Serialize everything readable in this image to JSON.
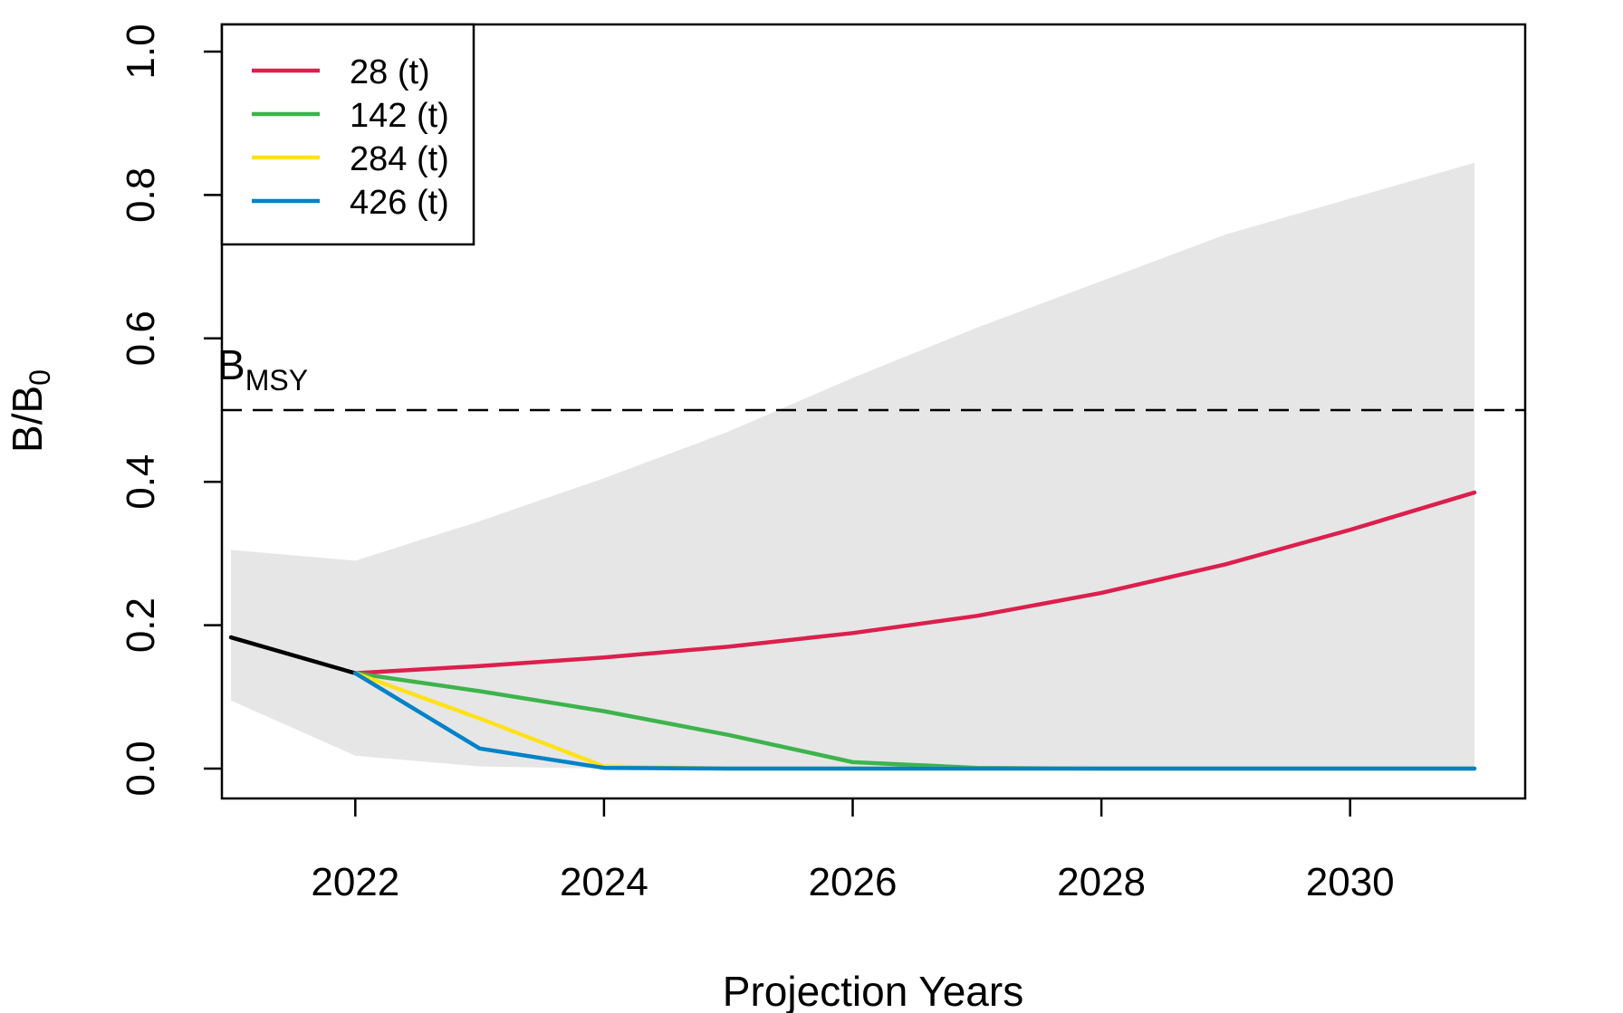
{
  "chart_data": {
    "type": "line",
    "xlabel": "Projection Years",
    "ylabel_main": "B/B",
    "ylabel_sub": "0",
    "xlim": [
      2021,
      2031
    ],
    "ylim": [
      0,
      1
    ],
    "x_ticks": [
      2022,
      2024,
      2026,
      2028,
      2030
    ],
    "y_ticks": [
      0.0,
      0.2,
      0.4,
      0.6,
      0.8,
      1.0
    ],
    "y_tick_labels": [
      "0.0",
      "0.2",
      "0.4",
      "0.6",
      "0.8",
      "1.0"
    ],
    "reference_line": {
      "y": 0.5,
      "label_main": "B",
      "label_sub": "MSY",
      "style": "dashed"
    },
    "band": {
      "x": [
        2021,
        2022,
        2023,
        2024,
        2025,
        2026,
        2027,
        2028,
        2029,
        2030,
        2031
      ],
      "upper": [
        0.305,
        0.29,
        0.345,
        0.405,
        0.47,
        0.545,
        0.615,
        0.68,
        0.745,
        0.795,
        0.845
      ],
      "lower": [
        0.095,
        0.018,
        0.003,
        0.0,
        0.0,
        0.0,
        0.0,
        0.0,
        0.0,
        0.0,
        0.0
      ],
      "color": "#e6e6e6"
    },
    "history": {
      "x": [
        2021,
        2022
      ],
      "y": [
        0.183,
        0.133
      ],
      "color": "#000000"
    },
    "series": [
      {
        "name": "28 (t)",
        "color": "#dc1f4d",
        "x": [
          2022,
          2023,
          2024,
          2025,
          2026,
          2027,
          2028,
          2029,
          2030,
          2031
        ],
        "y": [
          0.133,
          0.143,
          0.155,
          0.17,
          0.189,
          0.213,
          0.245,
          0.285,
          0.333,
          0.385
        ]
      },
      {
        "name": "142 (t)",
        "color": "#3cb44b",
        "x": [
          2022,
          2023,
          2024,
          2025,
          2026,
          2027,
          2028,
          2029,
          2030,
          2031
        ],
        "y": [
          0.133,
          0.108,
          0.08,
          0.047,
          0.009,
          0.001,
          0.0,
          0.0,
          0.0,
          0.0
        ]
      },
      {
        "name": "284 (t)",
        "color": "#ffe119",
        "x": [
          2022,
          2023,
          2024,
          2025,
          2026,
          2027,
          2028,
          2029,
          2030,
          2031
        ],
        "y": [
          0.133,
          0.07,
          0.003,
          0.0,
          0.0,
          0.0,
          0.0,
          0.0,
          0.0,
          0.0
        ]
      },
      {
        "name": "426 (t)",
        "color": "#0082c8",
        "x": [
          2022,
          2023,
          2024,
          2025,
          2026,
          2027,
          2028,
          2029,
          2030,
          2031
        ],
        "y": [
          0.133,
          0.028,
          0.001,
          0.0,
          0.0,
          0.0,
          0.0,
          0.0,
          0.0,
          0.0
        ]
      }
    ],
    "legend_position": "top-left"
  }
}
